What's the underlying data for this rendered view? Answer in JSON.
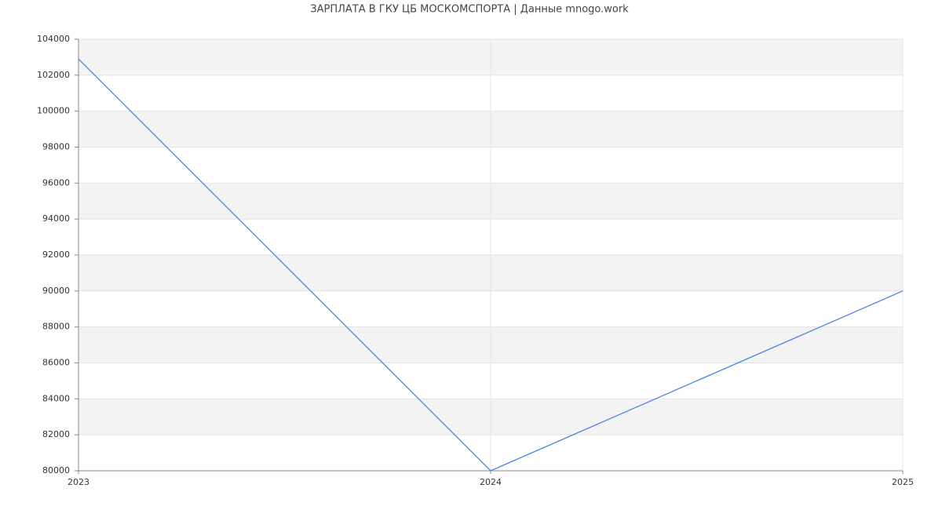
{
  "chart_data": {
    "type": "line",
    "title": "ЗАРПЛАТА В ГКУ ЦБ МОСКОМСПОРТА | Данные mnogo.work",
    "x": [
      2023,
      2024,
      2025
    ],
    "series": [
      {
        "color": "#4a86e8",
        "values": [
          102900,
          80000,
          90000
        ]
      }
    ],
    "xlim": [
      2023,
      2025
    ],
    "xticks": [
      2023,
      2024,
      2025
    ],
    "ylim": [
      80000,
      104000
    ],
    "yticks": [
      80000,
      82000,
      84000,
      86000,
      88000,
      90000,
      92000,
      94000,
      96000,
      98000,
      100000,
      102000,
      104000
    ],
    "grid": true
  }
}
